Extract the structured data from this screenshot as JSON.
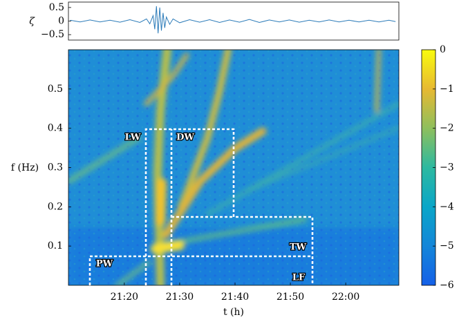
{
  "chart_data": [
    {
      "type": "line",
      "ylabel": "ζ",
      "x": [
        21.17,
        21.2,
        21.23,
        21.26,
        21.29,
        21.32,
        21.35,
        21.38,
        21.4,
        21.41,
        21.42,
        21.425,
        21.43,
        21.435,
        21.44,
        21.445,
        21.45,
        21.455,
        21.46,
        21.47,
        21.48,
        21.5,
        21.53,
        21.56,
        21.59,
        21.62,
        21.65,
        21.68,
        21.71,
        21.74,
        21.77,
        21.8,
        21.83,
        21.86,
        21.89,
        21.92,
        21.95,
        21.98,
        22.01,
        22.04,
        22.07,
        22.1,
        22.13,
        22.15
      ],
      "series": [
        {
          "color": "#2a7ab8",
          "values": [
            0.03,
            -0.03,
            0.04,
            -0.03,
            0.03,
            -0.04,
            0.05,
            -0.05,
            0.08,
            -0.1,
            0.2,
            -0.3,
            0.55,
            -0.45,
            0.5,
            -0.35,
            0.3,
            -0.25,
            0.15,
            -0.12,
            0.08,
            -0.06,
            0.05,
            -0.04,
            0.05,
            -0.05,
            0.04,
            -0.04,
            0.06,
            -0.05,
            0.04,
            -0.03,
            0.04,
            -0.04,
            0.03,
            -0.03,
            0.04,
            -0.03,
            0.03,
            -0.03,
            0.03,
            -0.03,
            0.03,
            -0.02
          ]
        }
      ],
      "xlim": [
        21.165,
        22.16
      ],
      "ylim": [
        -0.7,
        0.7
      ],
      "yticks": [
        0.5,
        0,
        {
          "value": -0.5,
          "label": "−0.5"
        }
      ]
    },
    {
      "type": "spectrogram",
      "xlabel": "t (h)",
      "ylabel": "f (Hz)",
      "xlim": [
        21.165,
        22.16
      ],
      "ylim": [
        0,
        0.6
      ],
      "xticks": [
        {
          "value": 21.3333,
          "label": "21:20"
        },
        {
          "value": 21.5,
          "label": "21:30"
        },
        {
          "value": 21.6667,
          "label": "21:40"
        },
        {
          "value": 21.8333,
          "label": "21:50"
        },
        {
          "value": 22,
          "label": "22:00"
        }
      ],
      "yticks": [
        0.1,
        0.2,
        0.3,
        0.4,
        0.5
      ],
      "colorbar": {
        "lim": [
          -6,
          0
        ],
        "ticks": [
          0,
          {
            "value": -1,
            "label": "−1"
          },
          {
            "value": -2,
            "label": "−2"
          },
          {
            "value": -3,
            "label": "−3"
          },
          {
            "value": -4,
            "label": "−4"
          },
          {
            "value": -5,
            "label": "−5"
          },
          {
            "value": -6,
            "label": "−6"
          }
        ],
        "colors": [
          "#1560e8",
          "#1486d9",
          "#0aa6c8",
          "#2db9a0",
          "#8ebf5d",
          "#e7b932",
          "#f9fb0e"
        ]
      },
      "annotations": [
        "LW",
        "DW",
        "PW",
        "TW",
        "LF"
      ]
    }
  ]
}
